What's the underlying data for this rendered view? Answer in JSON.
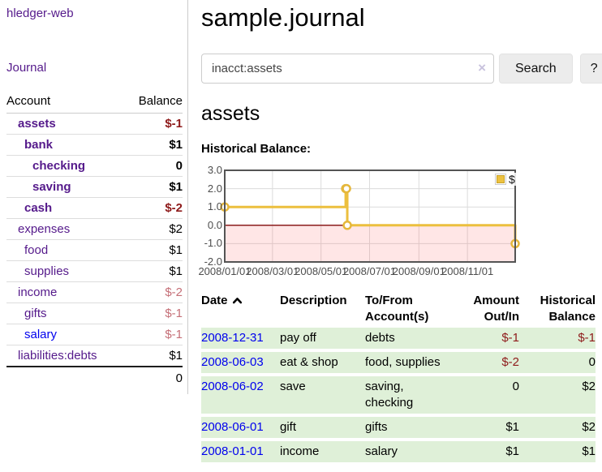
{
  "sidebar": {
    "app_title": "hledger-web",
    "journal_link": "Journal",
    "accounts_header": {
      "account": "Account",
      "balance": "Balance"
    },
    "accounts": [
      {
        "name": "assets",
        "balance": "$-1"
      },
      {
        "name": "bank",
        "balance": "$1"
      },
      {
        "name": "checking",
        "balance": "0"
      },
      {
        "name": "saving",
        "balance": "$1"
      },
      {
        "name": "cash",
        "balance": "$-2"
      },
      {
        "name": "expenses",
        "balance": "$2"
      },
      {
        "name": "food",
        "balance": "$1"
      },
      {
        "name": "supplies",
        "balance": "$1"
      },
      {
        "name": "income",
        "balance": "$-2"
      },
      {
        "name": "gifts",
        "balance": "$-1"
      },
      {
        "name": "salary",
        "balance": "$-1"
      },
      {
        "name": "liabilities:debts",
        "balance": "$1"
      }
    ],
    "total_balance": "0"
  },
  "main": {
    "title": "sample.journal",
    "search": {
      "value": "inacct:assets",
      "clear_icon": "×",
      "button_label": "Search",
      "help_label": "?"
    },
    "account_heading": "assets",
    "chart_label": "Historical Balance:"
  },
  "chart_data": {
    "type": "line",
    "title": "Historical Balance of assets",
    "step": true,
    "series": [
      {
        "name": "$",
        "color": "#edc240",
        "points": [
          [
            "2008-01-01",
            1
          ],
          [
            "2008-06-01",
            2
          ],
          [
            "2008-06-02",
            2
          ],
          [
            "2008-06-03",
            0
          ],
          [
            "2008-12-31",
            -1
          ]
        ]
      }
    ],
    "x_range": [
      "2008-01-01",
      "2008-12-31"
    ],
    "x_ticks": [
      "2008/01/01",
      "2008/03/01",
      "2008/05/01",
      "2008/07/01",
      "2008/09/01",
      "2008/11/01"
    ],
    "y_ticks": [
      3.0,
      2.0,
      1.0,
      0.0,
      -1.0,
      -2.0
    ],
    "ylim": [
      -2,
      3
    ],
    "grid": true,
    "legend": {
      "label": "$",
      "position": "top-right"
    },
    "negative_zone": {
      "from": 0,
      "to": -2,
      "color": "#fbdede"
    },
    "zero_line_color": "#8b1c1c"
  },
  "table": {
    "headers": [
      "Date",
      "Description",
      "To/From Account(s)",
      "Amount Out/In",
      "Historical Balance"
    ],
    "rows": [
      {
        "date": "2008-12-31",
        "description": "pay off",
        "accounts": "debts",
        "amount": "$-1",
        "balance": "$-1"
      },
      {
        "date": "2008-06-03",
        "description": "eat & shop",
        "accounts": "food, supplies",
        "amount": "$-2",
        "balance": "0"
      },
      {
        "date": "2008-06-02",
        "description": "save",
        "accounts": "saving, checking",
        "amount": "0",
        "balance": "$2"
      },
      {
        "date": "2008-06-01",
        "description": "gift",
        "accounts": "gifts",
        "amount": "$1",
        "balance": "$2"
      },
      {
        "date": "2008-01-01",
        "description": "income",
        "accounts": "salary",
        "amount": "$1",
        "balance": "$1"
      }
    ]
  }
}
